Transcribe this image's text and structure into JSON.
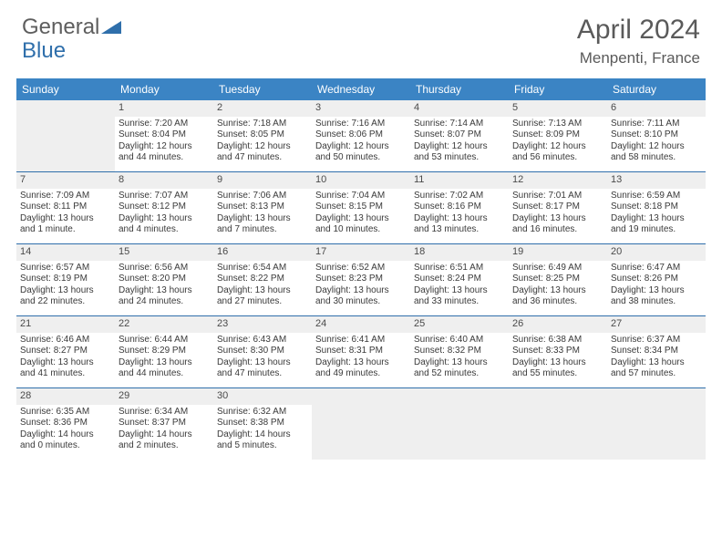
{
  "logo": {
    "text1": "General",
    "text2": "Blue"
  },
  "title": "April 2024",
  "location": "Menpenti, France",
  "colors": {
    "header_bg": "#3b84c4",
    "border": "#2f6fab",
    "daynum_bg": "#efefef"
  },
  "weekdays": [
    "Sunday",
    "Monday",
    "Tuesday",
    "Wednesday",
    "Thursday",
    "Friday",
    "Saturday"
  ],
  "weeks": [
    [
      null,
      {
        "n": "1",
        "sr": "Sunrise: 7:20 AM",
        "ss": "Sunset: 8:04 PM",
        "d1": "Daylight: 12 hours",
        "d2": "and 44 minutes."
      },
      {
        "n": "2",
        "sr": "Sunrise: 7:18 AM",
        "ss": "Sunset: 8:05 PM",
        "d1": "Daylight: 12 hours",
        "d2": "and 47 minutes."
      },
      {
        "n": "3",
        "sr": "Sunrise: 7:16 AM",
        "ss": "Sunset: 8:06 PM",
        "d1": "Daylight: 12 hours",
        "d2": "and 50 minutes."
      },
      {
        "n": "4",
        "sr": "Sunrise: 7:14 AM",
        "ss": "Sunset: 8:07 PM",
        "d1": "Daylight: 12 hours",
        "d2": "and 53 minutes."
      },
      {
        "n": "5",
        "sr": "Sunrise: 7:13 AM",
        "ss": "Sunset: 8:09 PM",
        "d1": "Daylight: 12 hours",
        "d2": "and 56 minutes."
      },
      {
        "n": "6",
        "sr": "Sunrise: 7:11 AM",
        "ss": "Sunset: 8:10 PM",
        "d1": "Daylight: 12 hours",
        "d2": "and 58 minutes."
      }
    ],
    [
      {
        "n": "7",
        "sr": "Sunrise: 7:09 AM",
        "ss": "Sunset: 8:11 PM",
        "d1": "Daylight: 13 hours",
        "d2": "and 1 minute."
      },
      {
        "n": "8",
        "sr": "Sunrise: 7:07 AM",
        "ss": "Sunset: 8:12 PM",
        "d1": "Daylight: 13 hours",
        "d2": "and 4 minutes."
      },
      {
        "n": "9",
        "sr": "Sunrise: 7:06 AM",
        "ss": "Sunset: 8:13 PM",
        "d1": "Daylight: 13 hours",
        "d2": "and 7 minutes."
      },
      {
        "n": "10",
        "sr": "Sunrise: 7:04 AM",
        "ss": "Sunset: 8:15 PM",
        "d1": "Daylight: 13 hours",
        "d2": "and 10 minutes."
      },
      {
        "n": "11",
        "sr": "Sunrise: 7:02 AM",
        "ss": "Sunset: 8:16 PM",
        "d1": "Daylight: 13 hours",
        "d2": "and 13 minutes."
      },
      {
        "n": "12",
        "sr": "Sunrise: 7:01 AM",
        "ss": "Sunset: 8:17 PM",
        "d1": "Daylight: 13 hours",
        "d2": "and 16 minutes."
      },
      {
        "n": "13",
        "sr": "Sunrise: 6:59 AM",
        "ss": "Sunset: 8:18 PM",
        "d1": "Daylight: 13 hours",
        "d2": "and 19 minutes."
      }
    ],
    [
      {
        "n": "14",
        "sr": "Sunrise: 6:57 AM",
        "ss": "Sunset: 8:19 PM",
        "d1": "Daylight: 13 hours",
        "d2": "and 22 minutes."
      },
      {
        "n": "15",
        "sr": "Sunrise: 6:56 AM",
        "ss": "Sunset: 8:20 PM",
        "d1": "Daylight: 13 hours",
        "d2": "and 24 minutes."
      },
      {
        "n": "16",
        "sr": "Sunrise: 6:54 AM",
        "ss": "Sunset: 8:22 PM",
        "d1": "Daylight: 13 hours",
        "d2": "and 27 minutes."
      },
      {
        "n": "17",
        "sr": "Sunrise: 6:52 AM",
        "ss": "Sunset: 8:23 PM",
        "d1": "Daylight: 13 hours",
        "d2": "and 30 minutes."
      },
      {
        "n": "18",
        "sr": "Sunrise: 6:51 AM",
        "ss": "Sunset: 8:24 PM",
        "d1": "Daylight: 13 hours",
        "d2": "and 33 minutes."
      },
      {
        "n": "19",
        "sr": "Sunrise: 6:49 AM",
        "ss": "Sunset: 8:25 PM",
        "d1": "Daylight: 13 hours",
        "d2": "and 36 minutes."
      },
      {
        "n": "20",
        "sr": "Sunrise: 6:47 AM",
        "ss": "Sunset: 8:26 PM",
        "d1": "Daylight: 13 hours",
        "d2": "and 38 minutes."
      }
    ],
    [
      {
        "n": "21",
        "sr": "Sunrise: 6:46 AM",
        "ss": "Sunset: 8:27 PM",
        "d1": "Daylight: 13 hours",
        "d2": "and 41 minutes."
      },
      {
        "n": "22",
        "sr": "Sunrise: 6:44 AM",
        "ss": "Sunset: 8:29 PM",
        "d1": "Daylight: 13 hours",
        "d2": "and 44 minutes."
      },
      {
        "n": "23",
        "sr": "Sunrise: 6:43 AM",
        "ss": "Sunset: 8:30 PM",
        "d1": "Daylight: 13 hours",
        "d2": "and 47 minutes."
      },
      {
        "n": "24",
        "sr": "Sunrise: 6:41 AM",
        "ss": "Sunset: 8:31 PM",
        "d1": "Daylight: 13 hours",
        "d2": "and 49 minutes."
      },
      {
        "n": "25",
        "sr": "Sunrise: 6:40 AM",
        "ss": "Sunset: 8:32 PM",
        "d1": "Daylight: 13 hours",
        "d2": "and 52 minutes."
      },
      {
        "n": "26",
        "sr": "Sunrise: 6:38 AM",
        "ss": "Sunset: 8:33 PM",
        "d1": "Daylight: 13 hours",
        "d2": "and 55 minutes."
      },
      {
        "n": "27",
        "sr": "Sunrise: 6:37 AM",
        "ss": "Sunset: 8:34 PM",
        "d1": "Daylight: 13 hours",
        "d2": "and 57 minutes."
      }
    ],
    [
      {
        "n": "28",
        "sr": "Sunrise: 6:35 AM",
        "ss": "Sunset: 8:36 PM",
        "d1": "Daylight: 14 hours",
        "d2": "and 0 minutes."
      },
      {
        "n": "29",
        "sr": "Sunrise: 6:34 AM",
        "ss": "Sunset: 8:37 PM",
        "d1": "Daylight: 14 hours",
        "d2": "and 2 minutes."
      },
      {
        "n": "30",
        "sr": "Sunrise: 6:32 AM",
        "ss": "Sunset: 8:38 PM",
        "d1": "Daylight: 14 hours",
        "d2": "and 5 minutes."
      },
      null,
      null,
      null,
      null
    ]
  ]
}
